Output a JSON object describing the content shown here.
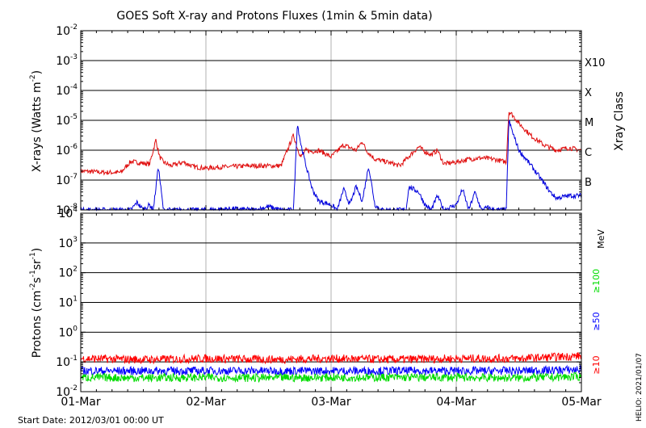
{
  "title": "GOES Soft X-ray and Protons Fluxes   (1min & 5min data)",
  "start_date": "Start Date: 2012/03/01 00:00 UT",
  "credit": "HELIO: 2021/01/07",
  "colors": {
    "xray_long": "#e01010",
    "xray_short": "#0000dd",
    "p10": "#ff0000",
    "p50": "#0000ff",
    "p100": "#00dd00",
    "grid_h": "#000000",
    "grid_v": "#b0b0b0"
  },
  "chart_data": [
    {
      "type": "line",
      "panel": "X-rays",
      "yscale": "log",
      "ylim": [
        1e-08,
        0.01
      ],
      "y_ticks": [
        {
          "mant": "10",
          "exp": "-8"
        },
        {
          "mant": "10",
          "exp": "-7"
        },
        {
          "mant": "10",
          "exp": "-6"
        },
        {
          "mant": "10",
          "exp": "-5"
        },
        {
          "mant": "10",
          "exp": "-4"
        },
        {
          "mant": "10",
          "exp": "-3"
        },
        {
          "mant": "10",
          "exp": "-2"
        }
      ],
      "ylabel": {
        "prefix": "X-rays (Watts m",
        "sup": "-2",
        "suffix": ")"
      },
      "right_axis_title": "Xray Class",
      "right_labels": [
        {
          "label": "B",
          "at": 1e-07
        },
        {
          "label": "C",
          "at": 1e-06
        },
        {
          "label": "M",
          "at": 1e-05
        },
        {
          "label": "X",
          "at": 0.0001
        },
        {
          "label": "X10",
          "at": 0.001
        }
      ],
      "xlim_days": [
        0,
        4
      ],
      "x_ticks": [
        "01-Mar",
        "02-Mar",
        "03-Mar",
        "04-Mar",
        "05-Mar"
      ],
      "grid": true,
      "series": [
        {
          "color_key": "xray_long",
          "x": [
            0,
            0.1,
            0.2,
            0.32,
            0.4,
            0.55,
            0.6,
            0.63,
            0.66,
            0.72,
            0.82,
            0.9,
            1,
            1.1,
            1.2,
            1.35,
            1.5,
            1.6,
            1.7,
            1.73,
            1.76,
            1.8,
            1.85,
            1.9,
            2,
            2.1,
            2.2,
            2.25,
            2.28,
            2.35,
            2.45,
            2.55,
            2.6,
            2.7,
            2.75,
            2.8,
            2.85,
            2.9,
            3,
            3.1,
            3.2,
            3.3,
            3.4,
            3.42,
            3.45,
            3.5,
            3.6,
            3.7,
            3.8,
            3.9,
            4
          ],
          "y": [
            2e-07,
            1.9e-07,
            1.8e-07,
            1.8e-07,
            4.2e-07,
            3.4e-07,
            2.2e-06,
            6e-07,
            4e-07,
            3e-07,
            4e-07,
            2.8e-07,
            2.5e-07,
            2.7e-07,
            2.8e-07,
            3e-07,
            3e-07,
            3e-07,
            3.2e-06,
            1.2e-06,
            6e-07,
            1e-06,
            9e-07,
            1e-06,
            6e-07,
            1.5e-06,
            1e-06,
            2e-06,
            1e-06,
            5e-07,
            4e-07,
            3e-07,
            5e-07,
            1.3e-06,
            9e-07,
            7e-07,
            1e-06,
            3.5e-07,
            4e-07,
            5e-07,
            5.5e-07,
            5e-07,
            4e-07,
            2e-05,
            1.5e-05,
            8e-06,
            3e-06,
            1.5e-06,
            1e-06,
            1.2e-06,
            1e-06
          ]
        },
        {
          "color_key": "xray_short",
          "x": [
            0.4,
            0.45,
            0.5,
            0.55,
            0.58,
            0.62,
            0.66,
            0.72,
            0.8,
            0.9,
            1,
            1.2,
            1.4,
            1.5,
            1.6,
            1.7,
            1.73,
            1.76,
            1.8,
            1.85,
            1.9,
            2,
            2.05,
            2.1,
            2.15,
            2.2,
            2.25,
            2.3,
            2.35,
            2.4,
            2.5,
            2.6,
            2.62,
            2.7,
            2.75,
            2.8,
            2.85,
            2.9,
            3,
            3.05,
            3.1,
            3.15,
            3.2,
            3.25,
            3.3,
            3.4,
            3.42,
            3.45,
            3.5,
            3.6,
            3.7,
            3.75,
            3.8,
            3.9,
            4
          ],
          "y": [
            1e-08,
            1.8e-08,
            1e-08,
            1.5e-08,
            1e-08,
            3e-07,
            1e-08,
            1e-08,
            1e-08,
            1e-08,
            1e-08,
            1.1e-08,
            1e-08,
            1.3e-08,
            1e-08,
            1e-08,
            8e-06,
            1.5e-06,
            3e-07,
            5e-08,
            2e-08,
            1.5e-08,
            1e-08,
            5e-08,
            1.5e-08,
            6e-08,
            2e-08,
            3e-07,
            1.5e-08,
            1e-08,
            1e-08,
            1e-08,
            6e-08,
            4e-08,
            1.5e-08,
            1e-08,
            3e-08,
            1e-08,
            1.5e-08,
            5e-08,
            1e-08,
            4e-08,
            1e-08,
            1.2e-08,
            1e-08,
            1e-08,
            1e-05,
            4e-06,
            1e-06,
            3e-07,
            8e-08,
            4e-08,
            2.5e-08,
            3e-08,
            3e-08
          ]
        }
      ]
    },
    {
      "type": "line",
      "panel": "Protons",
      "yscale": "log",
      "ylim": [
        0.01,
        10000
      ],
      "y_ticks": [
        {
          "mant": "10",
          "exp": "-2"
        },
        {
          "mant": "10",
          "exp": "-1"
        },
        {
          "mant": "10",
          "exp": "0"
        },
        {
          "mant": "10",
          "exp": "1"
        },
        {
          "mant": "10",
          "exp": "2"
        },
        {
          "mant": "10",
          "exp": "3"
        },
        {
          "mant": "10",
          "exp": "4"
        }
      ],
      "ylabel": {
        "a": "Protons (cm",
        "s1": "-2",
        "b": "s",
        "s2": "-1",
        "c": "sr",
        "s3": "-1",
        "d": ")"
      },
      "threshold": 10,
      "right_labels": [
        {
          "label": "MeV",
          "color_key": "grid_h"
        },
        {
          "label": "≥100",
          "color_key": "p100"
        },
        {
          "label": "≥50",
          "color_key": "p50"
        },
        {
          "label": "≥10",
          "color_key": "p10"
        }
      ],
      "xlim_days": [
        0,
        4
      ],
      "x_ticks": [
        "01-Mar",
        "02-Mar",
        "03-Mar",
        "04-Mar",
        "05-Mar"
      ],
      "grid": true,
      "series": [
        {
          "color_key": "p10",
          "x": [
            0,
            0.5,
            1,
            1.5,
            2,
            2.5,
            3,
            3.5,
            4
          ],
          "y": [
            0.13,
            0.12,
            0.13,
            0.12,
            0.13,
            0.12,
            0.13,
            0.13,
            0.16
          ]
        },
        {
          "color_key": "p50",
          "x": [
            0,
            0.5,
            1,
            1.5,
            2,
            2.5,
            3,
            3.5,
            4
          ],
          "y": [
            0.05,
            0.05,
            0.05,
            0.05,
            0.05,
            0.05,
            0.05,
            0.05,
            0.055
          ]
        },
        {
          "color_key": "p100",
          "x": [
            0,
            0.5,
            1,
            1.5,
            2,
            2.5,
            3,
            3.5,
            4
          ],
          "y": [
            0.03,
            0.029,
            0.03,
            0.029,
            0.03,
            0.03,
            0.03,
            0.029,
            0.032
          ]
        }
      ]
    }
  ]
}
